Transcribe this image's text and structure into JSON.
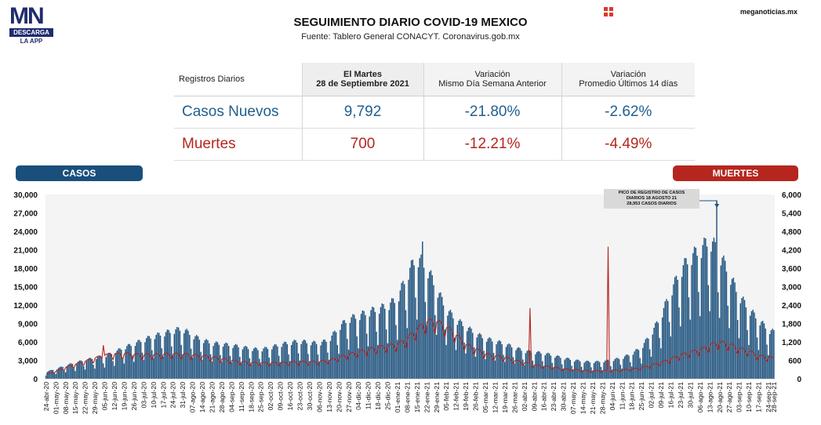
{
  "brand": {
    "logo_text": "MN",
    "logo_bar": "DESCARGA",
    "logo_app": "LA APP",
    "site": "meganoticias.mx"
  },
  "header": {
    "title": "SEGUIMIENTO DIARIO COVID-19 MEXICO",
    "source": "Fuente: Tablero General CONACYT. Coronavirus.gob.mx"
  },
  "table": {
    "h_registros": "Registros Diarios",
    "h_date_line1": "El Martes",
    "h_date_line2": "28 de Septiembre 2021",
    "h_var1_line1": "Variación",
    "h_var1_line2": "Mismo Día Semana Anterior",
    "h_var2_line1": "Variación",
    "h_var2_line2": "Promedio Últimos 14 días",
    "casos": {
      "label": "Casos Nuevos",
      "value": "9,792",
      "var_week": "-21.80%",
      "var_14d": "-2.62%"
    },
    "muertes": {
      "label": "Muertes",
      "value": "700",
      "var_week": "-12.21%",
      "var_14d": "-4.49%"
    }
  },
  "legend": {
    "casos": "CASOS",
    "muertes": "MUERTES"
  },
  "annotation": {
    "line1": "PICO DE REGISTRO DE CASOS",
    "line2": "DIARIOS 18 AGOSTO 21",
    "line3": "28,953 CASOS DIARIOS"
  },
  "colors": {
    "casos": "#1a4f7c",
    "muertes": "#b5261e",
    "annotation": "#1a4f7c"
  },
  "chart_data": {
    "type": "bar",
    "start_date": "24-abr-20",
    "end_date": "28-sep-21",
    "x_tick_labels": [
      "24-abr-20",
      "01-may-20",
      "08-may-20",
      "15-may-20",
      "22-may-20",
      "29-may-20",
      "05-jun-20",
      "12-jun-20",
      "19-jun-20",
      "26-jun-20",
      "03-jul-20",
      "10-jul-20",
      "17-jul-20",
      "24-jul-20",
      "31-jul-20",
      "07-ago-20",
      "14-ago-20",
      "21-ago-20",
      "28-ago-20",
      "04-sep-20",
      "11-sep-20",
      "18-sep-20",
      "25-sep-20",
      "02-oct-20",
      "09-oct-20",
      "16-oct-20",
      "23-oct-20",
      "30-oct-20",
      "06-nov-20",
      "13-nov-20",
      "20-nov-20",
      "27-nov-20",
      "04-dic-20",
      "11-dic-20",
      "18-dic-20",
      "25-dic-20",
      "01-ene-21",
      "08-ene-21",
      "15-ene-21",
      "22-ene-21",
      "29-ene-21",
      "05-feb-21",
      "12-feb-21",
      "19-feb-21",
      "26-feb-21",
      "05-mar-21",
      "12-mar-21",
      "19-mar-21",
      "26-mar-21",
      "02-abr-21",
      "09-abr-21",
      "16-abr-21",
      "23-abr-21",
      "30-abr-21",
      "07-may-21",
      "14-may-21",
      "21-may-21",
      "28-may-21",
      "04-jun-21",
      "11-jun-21",
      "18-jun-21",
      "25-jun-21",
      "02-jul-21",
      "09-jul-21",
      "16-jul-21",
      "23-jul-21",
      "30-jul-21",
      "06-ago-21",
      "13-ago-21",
      "20-ago-21",
      "27-ago-21",
      "03-sep-21",
      "10-sep-21",
      "17-sep-21",
      "24-sep-21",
      "28-sep-21"
    ],
    "y_left": {
      "ticks": [
        "0",
        "3,000",
        "6,000",
        "9,000",
        "12,000",
        "15,000",
        "18,000",
        "21,000",
        "24,000",
        "27,000",
        "30,000"
      ],
      "ylim": [
        0,
        30000
      ]
    },
    "y_right": {
      "ticks": [
        "0",
        "600",
        "1,200",
        "1,800",
        "2,400",
        "3,000",
        "3,600",
        "4,200",
        "4,800",
        "5,400",
        "6,000"
      ],
      "ylim": [
        0,
        6000
      ]
    },
    "series": [
      {
        "name": "CASOS",
        "type": "bar",
        "weekly_avg": [
          1000,
          1400,
          1900,
          2300,
          2700,
          3000,
          3300,
          3800,
          4500,
          5000,
          5600,
          6100,
          6500,
          6900,
          7200,
          6200,
          5600,
          5100,
          5000,
          4800,
          4600,
          4300,
          4200,
          4500,
          4900,
          5200,
          5400,
          5200,
          5100,
          5600,
          7400,
          8600,
          9000,
          9600,
          10000,
          10500,
          11500,
          15000,
          17500,
          16000,
          13000,
          10000,
          8500,
          7500,
          6500,
          5800,
          5400,
          5000,
          4500,
          4000,
          3800,
          3700,
          3300,
          3000,
          2700,
          2500,
          2400,
          2500,
          2700,
          3000,
          3600,
          4500,
          6500,
          9000,
          12500,
          15500,
          17500,
          18500,
          20000,
          18000,
          15000,
          12000,
          10000,
          8500,
          7000,
          6500
        ],
        "peaks": [
          {
            "date": "18-ago-21",
            "value": 28953
          },
          {
            "date": "19-ene-21",
            "value": 22339
          }
        ]
      },
      {
        "name": "MUERTES",
        "type": "line",
        "weekly_avg": [
          120,
          200,
          300,
          380,
          460,
          540,
          620,
          650,
          660,
          640,
          620,
          630,
          640,
          650,
          640,
          620,
          600,
          560,
          520,
          480,
          440,
          420,
          420,
          410,
          420,
          430,
          440,
          440,
          450,
          480,
          560,
          640,
          700,
          760,
          820,
          860,
          900,
          1050,
          1300,
          1500,
          1500,
          1350,
          1150,
          900,
          780,
          650,
          600,
          560,
          480,
          420,
          360,
          330,
          300,
          250,
          240,
          220,
          200,
          210,
          220,
          230,
          250,
          290,
          350,
          430,
          520,
          620,
          700,
          760,
          880,
          960,
          900,
          800,
          720,
          600,
          560,
          520
        ],
        "spikes": [
          {
            "date": "04-jun-20",
            "value": 1092
          },
          {
            "date": "06-abr-21",
            "value": 2300
          },
          {
            "date": "01-jun-21",
            "value": 4300
          }
        ]
      }
    ]
  }
}
